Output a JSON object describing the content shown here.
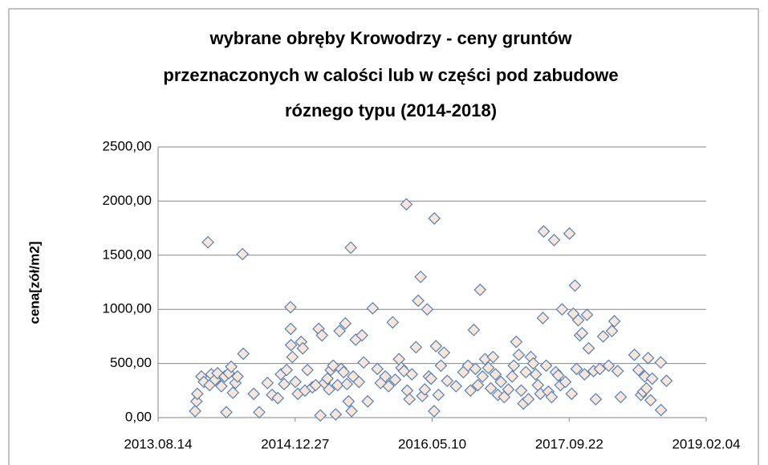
{
  "chart_data": {
    "type": "scatter",
    "title": [
      "wybrane obręby Krowodrzy - ceny gruntów",
      "przeznaczonych w calości lub w części  pod zabudowe",
      "róznego typu (2014-2018)"
    ],
    "ylabel": "cena[zół/m2]",
    "xlim": [
      "2013.08.14",
      "2019.02.04"
    ],
    "xticks": [
      "2013.08.14",
      "2014.12.27",
      "2016.05.10",
      "2017.09.22",
      "2019.02.04"
    ],
    "ylim": [
      0,
      2500
    ],
    "yticks": [
      {
        "value": 0,
        "label": "0,00"
      },
      {
        "value": 500,
        "label": "500,00"
      },
      {
        "value": 1000,
        "label": "1000,00"
      },
      {
        "value": 1500,
        "label": "1500,00"
      },
      {
        "value": 2000,
        "label": "2000,00"
      },
      {
        "value": 2500,
        "label": "2500,00"
      }
    ],
    "grid": true,
    "color": "#fbe5d6",
    "edge_color": "#4f81bd",
    "x": [
      "2013.12.27",
      "2014.01.01",
      "2014.01.04",
      "2014.01.19",
      "2014.01.28",
      "2014.02.12",
      "2014.02.18",
      "2014.02.24",
      "2014.03.10",
      "2014.03.19",
      "2014.04.02",
      "2014.04.14",
      "2014.04.20",
      "2014.04.29",
      "2014.05.08",
      "2014.05.14",
      "2014.05.23",
      "2014.05.31",
      "2014.06.18",
      "2014.06.21",
      "2014.07.29",
      "2014.08.18",
      "2014.09.17",
      "2014.10.04",
      "2014.10.25",
      "2014.11.05",
      "2014.11.17",
      "2014.11.26",
      "2014.12.10",
      "2014.12.11",
      "2014.12.12",
      "2014.12.17",
      "2014.12.28",
      "2015.01.06",
      "2015.01.18",
      "2015.01.24",
      "2015.02.01",
      "2015.02.10",
      "2015.02.28",
      "2015.03.12",
      "2015.03.23",
      "2015.03.29",
      "2015.04.04",
      "2015.04.13",
      "2015.04.24",
      "2015.04.30",
      "2015.05.06",
      "2015.05.15",
      "2015.05.24",
      "2015.05.31",
      "2015.06.07",
      "2015.06.13",
      "2015.06.22",
      "2015.06.28",
      "2015.07.04",
      "2015.07.10",
      "2015.07.18",
      "2015.07.21",
      "2015.07.27",
      "2015.08.05",
      "2015.08.17",
      "2015.08.28",
      "2015.09.03",
      "2015.09.18",
      "2015.10.06",
      "2015.10.23",
      "2015.11.04",
      "2015.11.21",
      "2015.12.03",
      "2015.12.18",
      "2015.12.27",
      "2016.01.10",
      "2016.01.19",
      "2016.01.28",
      "2016.02.06",
      "2016.02.09",
      "2016.02.17",
      "2016.02.26",
      "2016.03.12",
      "2016.03.20",
      "2016.03.29",
      "2016.04.04",
      "2016.04.13",
      "2016.04.22",
      "2016.04.28",
      "2016.05.06",
      "2016.05.17",
      "2016.05.18",
      "2016.05.24",
      "2016.06.02",
      "2016.06.11",
      "2016.06.22",
      "2016.07.04",
      "2016.08.05",
      "2016.09.01",
      "2016.09.18",
      "2016.09.27",
      "2016.10.09",
      "2016.10.15",
      "2016.10.24",
      "2016.11.01",
      "2016.11.10",
      "2016.11.19",
      "2016.12.01",
      "2016.12.10",
      "2016.12.18",
      "2016.12.27",
      "2017.01.05",
      "2017.01.16",
      "2017.01.28",
      "2017.02.12",
      "2017.02.26",
      "2017.03.04",
      "2017.03.13",
      "2017.03.22",
      "2017.03.31",
      "2017.04.08",
      "2017.04.17",
      "2017.04.26",
      "2017.05.05",
      "2017.05.14",
      "2017.05.23",
      "2017.05.31",
      "2017.06.09",
      "2017.06.18",
      "2017.06.21",
      "2017.06.30",
      "2017.07.08",
      "2017.07.20",
      "2017.07.29",
      "2017.08.04",
      "2017.08.13",
      "2017.08.21",
      "2017.08.27",
      "2017.09.08",
      "2017.09.23",
      "2017.10.01",
      "2017.10.07",
      "2017.10.13",
      "2017.10.19",
      "2017.10.25",
      "2017.10.31",
      "2017.11.08",
      "2017.11.17",
      "2017.11.26",
      "2017.12.02",
      "2017.12.20",
      "2017.12.28",
      "2018.01.12",
      "2018.01.24",
      "2018.02.13",
      "2018.02.25",
      "2018.03.06",
      "2018.03.18",
      "2018.03.29",
      "2018.05.18",
      "2018.06.02",
      "2018.06.11",
      "2018.06.19",
      "2018.06.25",
      "2018.07.01",
      "2018.07.07",
      "2018.07.16",
      "2018.07.22",
      "2018.08.22",
      "2018.08.23",
      "2018.09.12"
    ],
    "values": [
      60,
      150,
      220,
      380,
      330,
      1620,
      300,
      400,
      350,
      410,
      290,
      380,
      50,
      410,
      470,
      230,
      320,
      380,
      1510,
      590,
      220,
      50,
      320,
      210,
      180,
      400,
      310,
      440,
      1020,
      820,
      670,
      560,
      330,
      220,
      700,
      640,
      250,
      440,
      280,
      300,
      820,
      20,
      760,
      320,
      360,
      260,
      440,
      480,
      30,
      300,
      800,
      450,
      420,
      870,
      310,
      150,
      1570,
      60,
      380,
      720,
      330,
      760,
      510,
      150,
      1010,
      450,
      320,
      380,
      290,
      880,
      350,
      540,
      460,
      430,
      1970,
      250,
      170,
      400,
      650,
      1080,
      1300,
      200,
      260,
      1000,
      380,
      360,
      60,
      1840,
      660,
      210,
      480,
      600,
      340,
      290,
      420,
      480,
      250,
      810,
      450,
      300,
      1180,
      380,
      540,
      460,
      270,
      560,
      400,
      210,
      330,
      190,
      260,
      380,
      480,
      700,
      580,
      250,
      130,
      420,
      170,
      560,
      500,
      400,
      300,
      220,
      920,
      1720,
      480,
      240,
      190,
      1640,
      420,
      390,
      300,
      1000,
      330,
      1700,
      220,
      960,
      1220,
      450,
      900,
      760,
      780,
      400,
      950,
      640,
      430,
      170,
      450,
      750,
      480,
      800,
      890,
      430,
      190,
      580,
      440,
      210,
      240,
      380,
      270,
      550,
      160,
      360,
      510,
      70,
      340
    ]
  }
}
